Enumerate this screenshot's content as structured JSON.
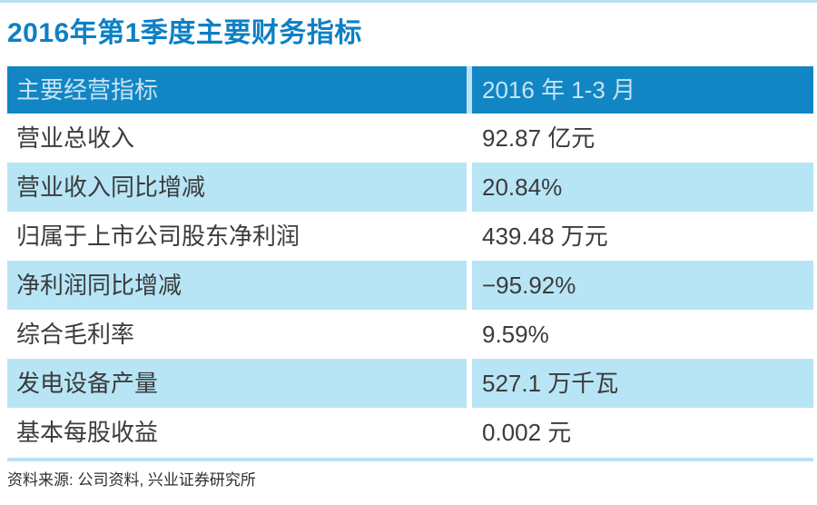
{
  "page": {
    "title": "2016年第1季度主要财务指标",
    "source_note": "资料来源: 公司资料, 兴业证券研究所"
  },
  "table": {
    "header": {
      "indicator_label": "主要经营指标",
      "period_label": "2016 年 1-3 月"
    },
    "rows": [
      {
        "indicator": "营业总收入",
        "value": "92.87 亿元"
      },
      {
        "indicator": "营业收入同比增减",
        "value": "20.84%"
      },
      {
        "indicator": "归属于上市公司股东净利润",
        "value": "439.48 万元"
      },
      {
        "indicator": "净利润同比增减",
        "value": "−95.92%"
      },
      {
        "indicator": "综合毛利率",
        "value": "9.59%"
      },
      {
        "indicator": "发电设备产量",
        "value": "527.1 万千瓦"
      },
      {
        "indicator": "基本每股收益",
        "value": "0.002 元"
      }
    ]
  },
  "colors": {
    "accent_blue": "#0d80c4",
    "header_bg": "#1286c4",
    "header_text": "#c5e4f4",
    "alt_row_bg": "#b7e5f6",
    "row_text": "#3b3b3b",
    "rule_light_blue": "#b9e2f1"
  },
  "chart_data": {
    "type": "table",
    "title": "2016年第1季度主要财务指标",
    "columns": [
      "主要经营指标",
      "2016 年 1-3 月"
    ],
    "rows": [
      [
        "营业总收入",
        "92.87 亿元"
      ],
      [
        "营业收入同比增减",
        "20.84%"
      ],
      [
        "归属于上市公司股东净利润",
        "439.48 万元"
      ],
      [
        "净利润同比增减",
        "−95.92%"
      ],
      [
        "综合毛利率",
        "9.59%"
      ],
      [
        "发电设备产量",
        "527.1 万千瓦"
      ],
      [
        "基本每股收益",
        "0.002 元"
      ]
    ],
    "numeric_values": {
      "total_revenue_yi_yuan": 92.87,
      "revenue_yoy_change_pct": 20.84,
      "net_profit_to_shareholders_wan_yuan": 439.48,
      "net_profit_yoy_change_pct": -95.92,
      "gross_margin_pct": 9.59,
      "power_equipment_output_wan_kw": 527.1,
      "basic_eps_yuan": 0.002
    },
    "source": "资料来源: 公司资料, 兴业证券研究所"
  }
}
